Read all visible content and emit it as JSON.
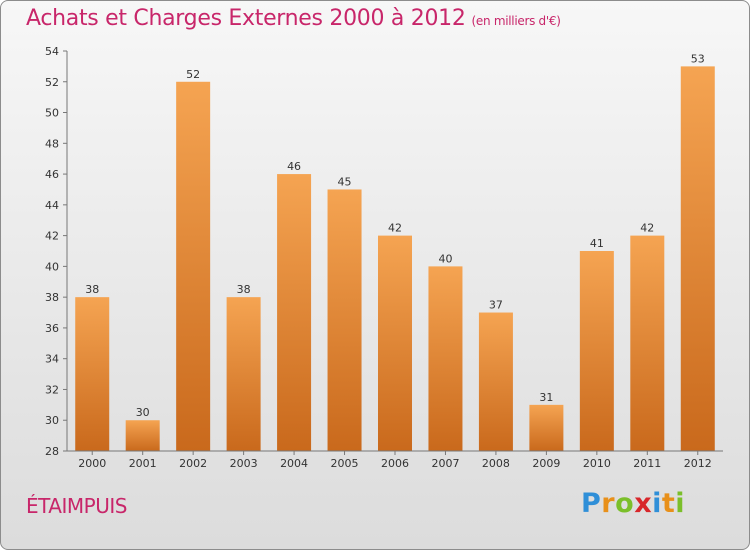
{
  "header": {
    "title": "Achats et Charges Externes 2000 à 2012",
    "unit": "(en milliers d'€)"
  },
  "footer": {
    "commune": "ÉTAIMPUIS"
  },
  "logo": {
    "letters": [
      "P",
      "r",
      "o",
      "x",
      "i",
      "t",
      "i"
    ],
    "colors": [
      "#2f8fd8",
      "#e8901a",
      "#7bbf2a",
      "#d8262a",
      "#2f8fd8",
      "#e8901a",
      "#7bbf2a"
    ]
  },
  "colors": {
    "bar_top": "#f5a452",
    "bar_bottom": "#c9691c",
    "title": "#c8266a"
  },
  "chart_data": {
    "type": "bar",
    "categories": [
      "2000",
      "2001",
      "2002",
      "2003",
      "2004",
      "2005",
      "2006",
      "2007",
      "2008",
      "2009",
      "2010",
      "2011",
      "2012"
    ],
    "values": [
      38,
      30,
      52,
      38,
      46,
      45,
      42,
      40,
      37,
      31,
      41,
      42,
      53
    ],
    "data_labels": [
      "38",
      "30",
      "52",
      "38",
      "46",
      "45",
      "42",
      "40",
      "37",
      "31",
      "41",
      "42",
      "53"
    ],
    "ylim": [
      28,
      54
    ],
    "yticks": [
      28,
      30,
      32,
      34,
      36,
      38,
      40,
      42,
      44,
      46,
      48,
      50,
      52,
      54
    ],
    "ytick_labels": [
      "28",
      "30",
      "32",
      "34",
      "36",
      "38",
      "40",
      "42",
      "44",
      "46",
      "48",
      "50",
      "52",
      "54"
    ],
    "grid": false,
    "legend": "none"
  }
}
